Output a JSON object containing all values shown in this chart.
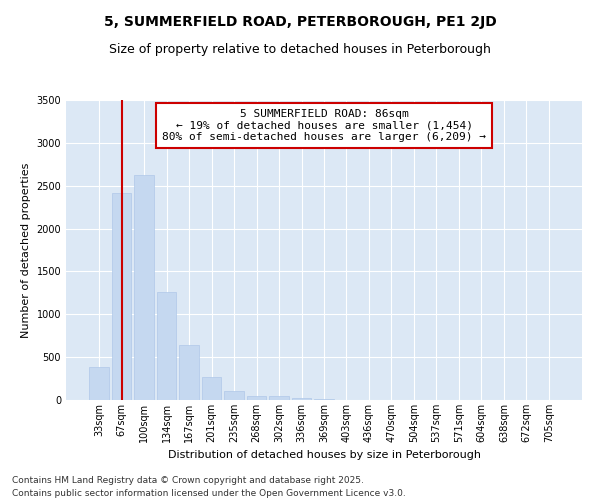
{
  "title1": "5, SUMMERFIELD ROAD, PETERBOROUGH, PE1 2JD",
  "title2": "Size of property relative to detached houses in Peterborough",
  "xlabel": "Distribution of detached houses by size in Peterborough",
  "ylabel": "Number of detached properties",
  "categories": [
    "33sqm",
    "67sqm",
    "100sqm",
    "134sqm",
    "167sqm",
    "201sqm",
    "235sqm",
    "268sqm",
    "302sqm",
    "336sqm",
    "369sqm",
    "403sqm",
    "436sqm",
    "470sqm",
    "504sqm",
    "537sqm",
    "571sqm",
    "604sqm",
    "638sqm",
    "672sqm",
    "705sqm"
  ],
  "values": [
    390,
    2420,
    2620,
    1260,
    640,
    270,
    110,
    50,
    45,
    25,
    10,
    0,
    0,
    0,
    0,
    0,
    0,
    0,
    0,
    0,
    0
  ],
  "bar_color": "#c5d8f0",
  "bar_edgecolor": "#b0c8e8",
  "vline_x": 1.0,
  "vline_color": "#cc0000",
  "annotation_text": "5 SUMMERFIELD ROAD: 86sqm\n← 19% of detached houses are smaller (1,454)\n80% of semi-detached houses are larger (6,209) →",
  "annotation_box_color": "#ffffff",
  "annotation_box_edgecolor": "#cc0000",
  "ylim": [
    0,
    3500
  ],
  "yticks": [
    0,
    500,
    1000,
    1500,
    2000,
    2500,
    3000,
    3500
  ],
  "background_color": "#dce8f5",
  "grid_color": "#ffffff",
  "footer1": "Contains HM Land Registry data © Crown copyright and database right 2025.",
  "footer2": "Contains public sector information licensed under the Open Government Licence v3.0.",
  "title_fontsize": 10,
  "subtitle_fontsize": 9,
  "label_fontsize": 8,
  "tick_fontsize": 7,
  "footer_fontsize": 6.5
}
